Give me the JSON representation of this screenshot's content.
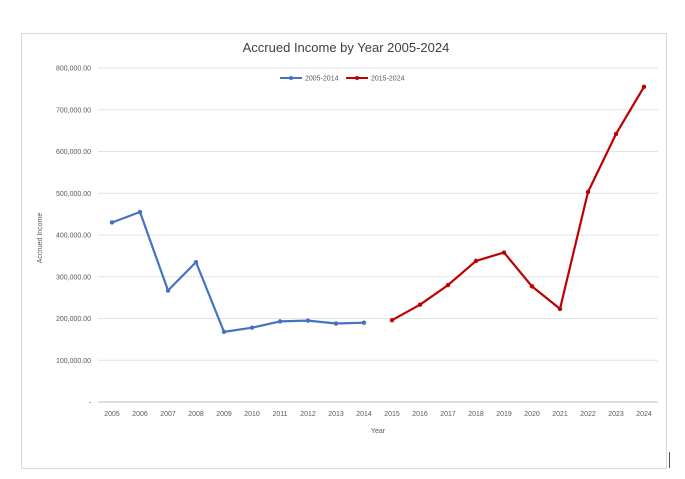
{
  "chart_data": {
    "type": "line",
    "title": "Accrued Income by Year 2005-2024",
    "xlabel": "Year",
    "ylabel": "Accrued Income",
    "categories": [
      "2005",
      "2006",
      "2007",
      "2008",
      "2009",
      "2010",
      "2011",
      "2012",
      "2013",
      "2014",
      "2015",
      "2016",
      "2017",
      "2018",
      "2019",
      "2020",
      "2021",
      "2022",
      "2023",
      "2024"
    ],
    "y_ticks": [
      "-",
      "100,000.00",
      "200,000.00",
      "300,000.00",
      "400,000.00",
      "500,000.00",
      "600,000.00",
      "700,000.00",
      "800,000.00"
    ],
    "ylim": [
      0,
      800000
    ],
    "grid": true,
    "legend_position": "top",
    "series": [
      {
        "name": "2005-2014",
        "color": "#4472c4",
        "values": [
          430000,
          455000,
          267000,
          335000,
          168000,
          178000,
          193000,
          195000,
          188000,
          190000,
          null,
          null,
          null,
          null,
          null,
          null,
          null,
          null,
          null,
          null
        ]
      },
      {
        "name": "2015-2024",
        "color": "#c00000",
        "values": [
          null,
          null,
          null,
          null,
          null,
          null,
          null,
          null,
          null,
          null,
          196000,
          233000,
          280000,
          338000,
          358000,
          277000,
          223000,
          503000,
          642000,
          755000
        ]
      }
    ]
  }
}
